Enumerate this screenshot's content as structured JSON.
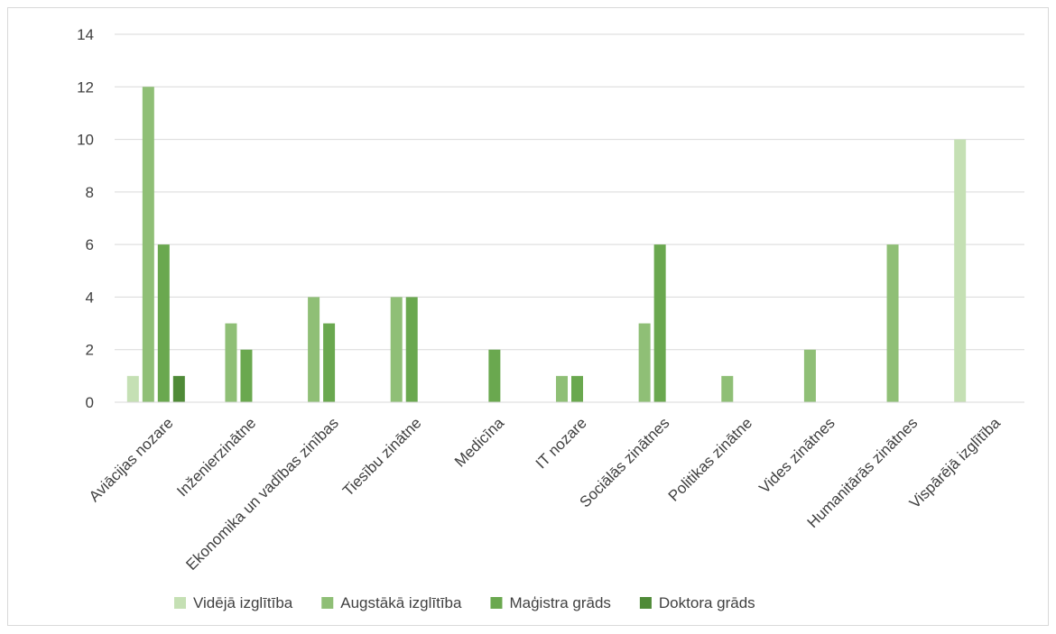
{
  "chart_data": {
    "type": "bar",
    "title": "",
    "xlabel": "",
    "ylabel": "",
    "ylim": [
      0,
      14
    ],
    "yticks": [
      0,
      2,
      4,
      6,
      8,
      10,
      12,
      14
    ],
    "grid": true,
    "legend_position": "bottom",
    "categories": [
      "Aviācijas nozare",
      "Inženierzinātne",
      "Ekonomika un vadības zinības",
      "Tiesību zinātne",
      "Medicīna",
      "IT nozare",
      "Sociālās zinātnes",
      "Politikas zinātne",
      "Vides zinātnes",
      "Humanitārās zinātnes",
      "Vispārējā izglītība"
    ],
    "series": [
      {
        "name": "Vidējā izglītība",
        "color": "#c5e0b4",
        "values": [
          1,
          0,
          0,
          0,
          0,
          0,
          0,
          0,
          0,
          0,
          10
        ]
      },
      {
        "name": "Augstākā izglītība",
        "color": "#8fbf76",
        "values": [
          12,
          3,
          4,
          4,
          0,
          1,
          3,
          1,
          2,
          6,
          0
        ]
      },
      {
        "name": "Maģistra grāds",
        "color": "#6aa84f",
        "values": [
          6,
          2,
          3,
          4,
          2,
          1,
          6,
          0,
          0,
          0,
          0
        ]
      },
      {
        "name": "Doktora grāds",
        "color": "#4f8a37",
        "values": [
          1,
          0,
          0,
          0,
          0,
          0,
          0,
          0,
          0,
          0,
          0
        ]
      }
    ]
  }
}
